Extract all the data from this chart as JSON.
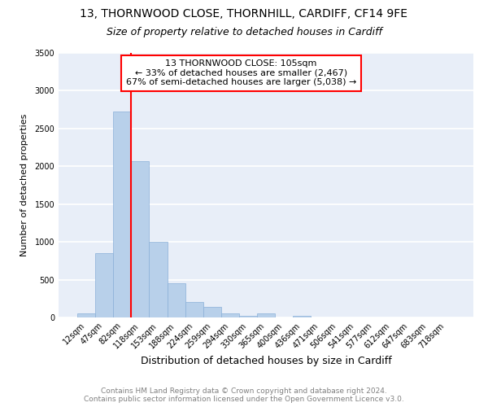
{
  "title1": "13, THORNWOOD CLOSE, THORNHILL, CARDIFF, CF14 9FE",
  "title2": "Size of property relative to detached houses in Cardiff",
  "xlabel": "Distribution of detached houses by size in Cardiff",
  "ylabel": "Number of detached properties",
  "footnote1": "Contains HM Land Registry data © Crown copyright and database right 2024.",
  "footnote2": "Contains public sector information licensed under the Open Government Licence v3.0.",
  "categories": [
    "12sqm",
    "47sqm",
    "82sqm",
    "118sqm",
    "153sqm",
    "188sqm",
    "224sqm",
    "259sqm",
    "294sqm",
    "330sqm",
    "365sqm",
    "400sqm",
    "436sqm",
    "471sqm",
    "506sqm",
    "541sqm",
    "577sqm",
    "612sqm",
    "647sqm",
    "683sqm",
    "718sqm"
  ],
  "values": [
    55,
    850,
    2730,
    2070,
    1005,
    455,
    205,
    140,
    55,
    25,
    55,
    0,
    25,
    0,
    0,
    0,
    0,
    0,
    0,
    0,
    0
  ],
  "bar_color": "#b8d0ea",
  "bar_edge_color": "#8ab0d8",
  "property_line_x": 3.0,
  "annotation_text1": "13 THORNWOOD CLOSE: 105sqm",
  "annotation_text2": "← 33% of detached houses are smaller (2,467)",
  "annotation_text3": "67% of semi-detached houses are larger (5,038) →",
  "annotation_box_color": "white",
  "annotation_box_edge": "red",
  "vline_color": "red",
  "ylim": [
    0,
    3500
  ],
  "yticks": [
    0,
    500,
    1000,
    1500,
    2000,
    2500,
    3000,
    3500
  ],
  "bg_color": "#e8eef8",
  "grid_color": "white",
  "title1_fontsize": 10,
  "title2_fontsize": 9,
  "xlabel_fontsize": 9,
  "ylabel_fontsize": 8,
  "tick_fontsize": 7,
  "footnote_fontsize": 6.5,
  "annot_fontsize": 8
}
